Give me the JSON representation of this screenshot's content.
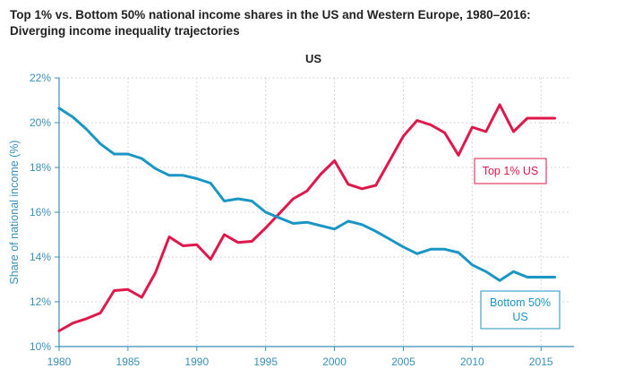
{
  "title_line1": "Top 1% vs. Bottom 50% national income shares in the US and Western Europe, 1980–2016:",
  "title_line2": "Diverging income inequality trajectories",
  "chart_data": {
    "type": "line",
    "subtitle": "US",
    "xlabel": "",
    "ylabel": "Share of national income (%)",
    "xlim": [
      1980,
      2017
    ],
    "ylim": [
      10,
      22
    ],
    "x_ticks": [
      1980,
      1985,
      1990,
      1995,
      2000,
      2005,
      2010,
      2015
    ],
    "x_tick_labels": [
      "1980",
      "1985",
      "1990",
      "1995",
      "2000",
      "2005",
      "2010",
      "2015"
    ],
    "y_ticks": [
      10,
      12,
      14,
      16,
      18,
      20,
      22
    ],
    "y_tick_labels": [
      "10%",
      "12%",
      "14%",
      "16%",
      "18%",
      "20%",
      "22%"
    ],
    "grid": true,
    "x": [
      1980,
      1981,
      1982,
      1983,
      1984,
      1985,
      1986,
      1987,
      1988,
      1989,
      1990,
      1991,
      1992,
      1993,
      1994,
      1995,
      1996,
      1997,
      1998,
      1999,
      2000,
      2001,
      2002,
      2003,
      2004,
      2005,
      2006,
      2007,
      2008,
      2009,
      2010,
      2011,
      2012,
      2013,
      2014,
      2015,
      2016
    ],
    "series": [
      {
        "name": "Top 1% US",
        "label_lines": [
          "Top 1% US"
        ],
        "color": "#e0174a",
        "values": [
          10.7,
          11.05,
          11.25,
          11.5,
          12.5,
          12.55,
          12.2,
          13.3,
          14.9,
          14.5,
          14.55,
          13.9,
          15.0,
          14.65,
          14.7,
          15.3,
          15.95,
          16.6,
          16.95,
          17.7,
          18.3,
          17.25,
          17.05,
          17.2,
          18.3,
          19.4,
          20.1,
          19.9,
          19.55,
          18.55,
          19.8,
          19.6,
          20.8,
          19.6,
          20.2,
          20.2,
          20.2
        ]
      },
      {
        "name": "Bottom 50% US",
        "label_lines": [
          "Bottom 50%",
          "US"
        ],
        "color": "#1a96c4",
        "values": [
          20.65,
          20.25,
          19.7,
          19.05,
          18.6,
          18.6,
          18.4,
          17.95,
          17.65,
          17.65,
          17.5,
          17.3,
          16.5,
          16.6,
          16.5,
          16.0,
          15.75,
          15.5,
          15.55,
          15.4,
          15.25,
          15.6,
          15.45,
          15.15,
          14.8,
          14.45,
          14.15,
          14.35,
          14.35,
          14.2,
          13.65,
          13.35,
          12.95,
          13.35,
          13.1,
          13.1,
          13.1
        ]
      }
    ]
  }
}
